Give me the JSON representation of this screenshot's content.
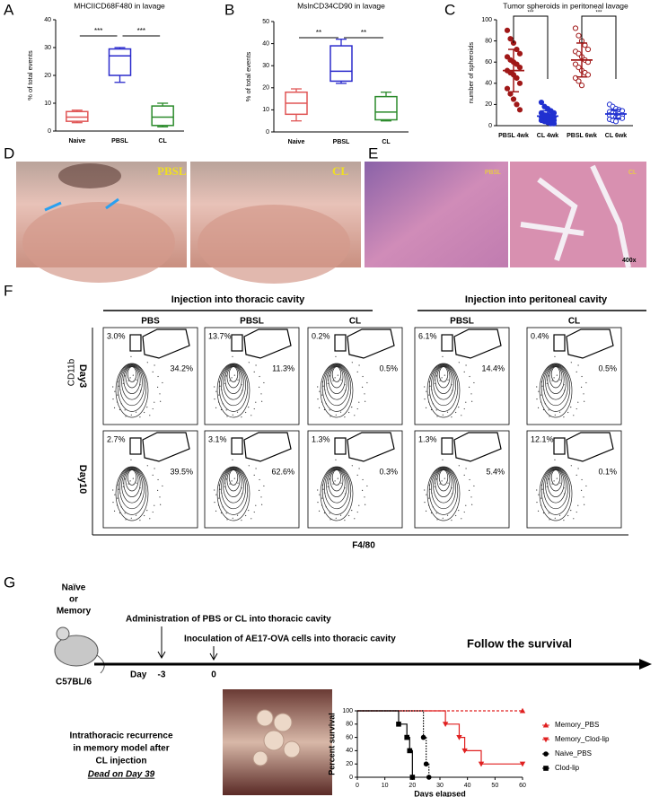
{
  "chart_data": [
    {
      "type": "box",
      "title": "MHCIICD68F480 in lavage",
      "y_label": "% of total events",
      "categories": [
        "Naive",
        "PBSL",
        "CL"
      ],
      "colors": [
        "#e05555",
        "#2a2acc",
        "#2a8a2a"
      ],
      "boxes": [
        {
          "min": 3,
          "q1": 3.5,
          "median": 5,
          "q3": 7,
          "max": 7.5
        },
        {
          "min": 17.5,
          "q1": 20,
          "median": 27,
          "q3": 29.5,
          "max": 30
        },
        {
          "min": 1.5,
          "q1": 2,
          "median": 5,
          "q3": 9,
          "max": 10
        }
      ],
      "annotations": [
        "***",
        "***"
      ],
      "ylim": [
        0,
        40
      ],
      "yticks": [
        0,
        10,
        20,
        30,
        40
      ]
    },
    {
      "type": "box",
      "title": "MslnCD34CD90 in lavage",
      "y_label": "% of total events",
      "categories": [
        "Naive",
        "PBSL",
        "CL"
      ],
      "colors": [
        "#e05555",
        "#2a2acc",
        "#2a8a2a"
      ],
      "boxes": [
        {
          "min": 5,
          "q1": 8,
          "median": 13,
          "q3": 18,
          "max": 19.5
        },
        {
          "min": 22,
          "q1": 23,
          "median": 27.5,
          "q3": 39,
          "max": 42
        },
        {
          "min": 5,
          "q1": 5.5,
          "median": 9,
          "q3": 16,
          "max": 18
        }
      ],
      "annotations": [
        "**",
        "**"
      ],
      "ylim": [
        0,
        50
      ],
      "yticks": [
        0,
        10,
        20,
        30,
        40,
        50
      ]
    },
    {
      "type": "scatter",
      "title": "Tumor spheroids in peritoneal lavage",
      "y_label": "number of spheroids",
      "categories": [
        "PBSL 4wk",
        "CL 4wk",
        "PBSL 6wk",
        "CL 6wk"
      ],
      "series": [
        {
          "color": "#a01818",
          "filled": true,
          "values": [
            90,
            82,
            78,
            72,
            68,
            65,
            62,
            60,
            58,
            55,
            52,
            50,
            48,
            45,
            40,
            35,
            30,
            25,
            20,
            15
          ],
          "mean": 52,
          "sd": 20
        },
        {
          "color": "#2030d0",
          "filled": true,
          "values": [
            22,
            18,
            16,
            14,
            12,
            12,
            10,
            10,
            9,
            8,
            8,
            7,
            6,
            6,
            5,
            5,
            4,
            3,
            2,
            2
          ],
          "mean": 9,
          "sd": 5
        },
        {
          "color": "#a01818",
          "filled": false,
          "values": [
            92,
            85,
            80,
            76,
            72,
            70,
            68,
            65,
            62,
            60,
            58,
            55,
            52,
            50,
            48,
            45,
            42,
            38
          ],
          "mean": 62,
          "sd": 16
        },
        {
          "color": "#2030d0",
          "filled": false,
          "values": [
            20,
            18,
            16,
            15,
            14,
            13,
            12,
            12,
            11,
            10,
            10,
            9,
            8,
            8,
            7,
            6,
            5,
            4
          ],
          "mean": 11,
          "sd": 4
        }
      ],
      "annotations": [
        "***",
        "***"
      ],
      "ylim": [
        0,
        100
      ],
      "yticks": [
        0,
        20,
        40,
        60,
        80,
        100
      ]
    },
    {
      "type": "line",
      "x_label": "Days elapsed",
      "y_label": "Percent survival",
      "series": [
        {
          "name": "Memory_PBS",
          "color": "#e02020",
          "dash": "dashed",
          "marker": "triangle",
          "x": [
            0,
            60
          ],
          "values": [
            100,
            100
          ]
        },
        {
          "name": "Memory_Clod-lip",
          "color": "#e02020",
          "dash": "solid",
          "marker": "triangle-down",
          "x": [
            0,
            32,
            37,
            39,
            45,
            60
          ],
          "values": [
            100,
            80,
            60,
            40,
            20,
            20
          ]
        },
        {
          "name": "Naive_PBS",
          "color": "#000000",
          "dash": "dotted",
          "marker": "circle",
          "x": [
            0,
            24,
            25,
            26
          ],
          "values": [
            100,
            60,
            20,
            0
          ]
        },
        {
          "name": "Clod-lip",
          "color": "#000000",
          "dash": "solid",
          "marker": "square",
          "x": [
            0,
            15,
            18,
            19,
            20
          ],
          "values": [
            100,
            80,
            60,
            40,
            0
          ]
        }
      ],
      "xlim": [
        0,
        60
      ],
      "xticks": [
        0,
        10,
        20,
        30,
        40,
        50,
        60
      ],
      "ylim": [
        0,
        100
      ],
      "yticks": [
        0,
        20,
        40,
        60,
        80,
        100
      ]
    }
  ],
  "figure": {
    "letters": [
      "A",
      "B",
      "C",
      "D",
      "E",
      "F",
      "G"
    ],
    "photo_labels": {
      "d_left": "PBSL",
      "d_right": "CL",
      "e_left": "PBSL",
      "e_right": "CL",
      "magnification": "400x"
    },
    "flow": {
      "thoracic_header": "Injection into thoracic cavity",
      "peritoneal_header": "Injection into peritoneal cavity",
      "columns": [
        "PBS",
        "PBSL",
        "CL",
        "PBSL",
        "CL"
      ],
      "rows": [
        "Day3",
        "Day10"
      ],
      "y_label": "CD11b",
      "x_label": "F4/80",
      "gates": [
        [
          [
            "3.0%",
            "34.2%"
          ],
          [
            "13.7%",
            "11.3%"
          ],
          [
            "0.2%",
            "0.5%"
          ],
          [
            "6.1%",
            "14.4%"
          ],
          [
            "0.4%",
            "0.5%"
          ]
        ],
        [
          [
            "2.7%",
            "39.5%"
          ],
          [
            "3.1%",
            "62.6%"
          ],
          [
            "1.3%",
            "0.3%"
          ],
          [
            "1.3%",
            "5.4%"
          ],
          [
            "12.1%",
            "0.1%"
          ]
        ]
      ]
    },
    "timeline": {
      "mouse": [
        "Naïve",
        "or",
        "Memory"
      ],
      "strain": "C57BL/6",
      "step1": "Administration of PBS or CL into thoracic cavity",
      "step2": "Inoculation of AE17-OVA cells  into thoracic cavity",
      "follow": "Follow the survival",
      "day": "Day",
      "day1": "-3",
      "day2": "0",
      "caption": [
        "Intrathoracic recurrence",
        "in memory model after",
        "CL injection"
      ],
      "death": "Dead on Day 39"
    }
  }
}
